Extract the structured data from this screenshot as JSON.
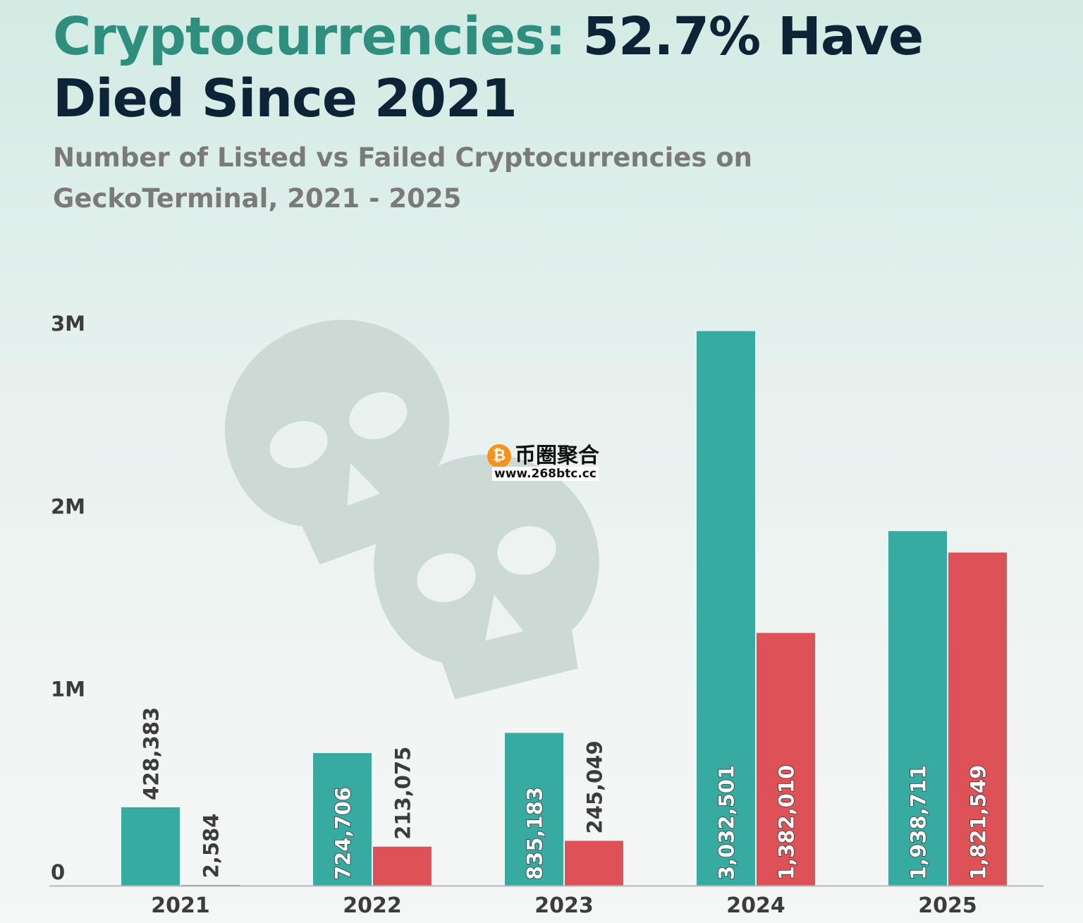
{
  "header": {
    "title_highlight": "Cryptocurrencies:",
    "title_rest": "52.7% Have Died Since 2021",
    "subtitle": "Number of Listed vs Failed Cryptocurrencies on GeckoTerminal, 2021 - 2025"
  },
  "watermark": {
    "coin_symbol": "₿",
    "name": "币圈聚合",
    "url": "www.268btc.cc"
  },
  "chart_data": {
    "type": "bar",
    "title": "",
    "xlabel": "",
    "ylabel": "",
    "categories": [
      "2021",
      "2022",
      "2023",
      "2024",
      "2025"
    ],
    "series": [
      {
        "name": "",
        "color": "#37aba2",
        "values": [
          428383,
          724706,
          835183,
          3032501,
          1938711
        ],
        "labels": [
          "428,383",
          "724,706",
          "835,183",
          "3,032,501",
          "1,938,711"
        ]
      },
      {
        "name": "",
        "color": "#de5257",
        "values": [
          2584,
          213075,
          245049,
          1382010,
          1821549
        ],
        "labels": [
          "2,584",
          "213,075",
          "245,049",
          "1,382,010",
          "1,821,549"
        ]
      }
    ],
    "ylim": [
      0,
      3000000
    ],
    "yticks": [
      0,
      1000000,
      2000000,
      3000000
    ],
    "ytick_labels": [
      "0",
      "1M",
      "2M",
      "3M"
    ],
    "grid": false,
    "legend": "none",
    "decoration": "skull-icons"
  }
}
